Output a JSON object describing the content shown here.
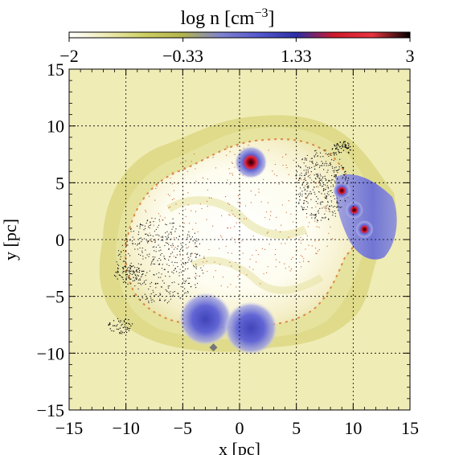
{
  "colorbar": {
    "title_main": "log n [cm",
    "title_sup": "−3",
    "title_close": "]",
    "tick_labels": [
      "−2",
      "−0.33",
      "1.33",
      "3"
    ],
    "tick_values": [
      -2,
      -0.33,
      1.33,
      3
    ],
    "range": [
      -2,
      3
    ],
    "colors": [
      "#ffffff",
      "#eeeab4",
      "#cdcf62",
      "#b3b44d",
      "#8083cf",
      "#5558ce",
      "#2c2fa8",
      "#cf1a2c",
      "#e8343f",
      "#000000"
    ]
  },
  "chart_data": {
    "type": "heatmap",
    "xlabel": "x [pc]",
    "ylabel": "y [pc]",
    "xlim": [
      -15,
      15
    ],
    "ylim": [
      -15,
      15
    ],
    "x_ticks": [
      -15,
      -10,
      -5,
      0,
      5,
      10,
      15
    ],
    "y_ticks": [
      -15,
      -10,
      -5,
      0,
      5,
      10,
      15
    ],
    "x_tick_labels": [
      "−15",
      "−10",
      "−5",
      "0",
      "5",
      "10",
      "15"
    ],
    "y_tick_labels": [
      "−15",
      "−10",
      "−5",
      "0",
      "5",
      "10",
      "15"
    ],
    "grid": true,
    "background_color": "#f0ecb6",
    "dense_clumps": [
      {
        "x": 1.0,
        "y": 6.8,
        "r": 1.1,
        "core": true
      },
      {
        "x": 9.0,
        "y": 4.3,
        "r": 0.6,
        "core": true
      },
      {
        "x": 10.1,
        "y": 2.6,
        "r": 0.6,
        "core": true
      },
      {
        "x": 11.0,
        "y": 0.9,
        "r": 0.6,
        "core": true
      },
      {
        "x": -3.0,
        "y": -7.0,
        "r": 1.8,
        "core": false
      },
      {
        "x": 1.0,
        "y": -7.8,
        "r": 1.8,
        "core": false
      }
    ],
    "marker": {
      "x": -2.3,
      "y": -9.5
    }
  }
}
